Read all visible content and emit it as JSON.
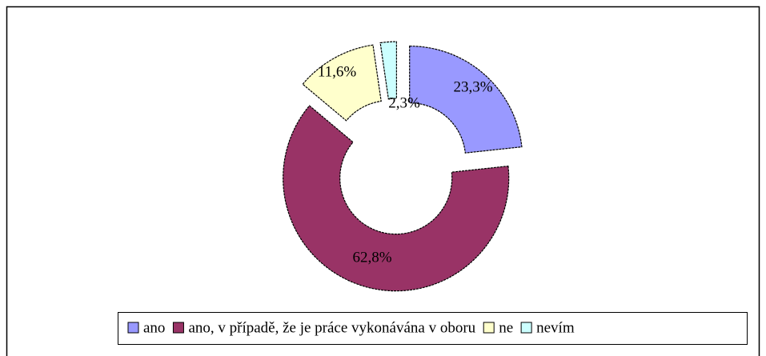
{
  "chart_data": {
    "type": "donut",
    "categories": [
      "ano",
      "ano, v případě, že je práce vykonávána v oboru",
      "ne",
      "nevím"
    ],
    "values": [
      23.3,
      62.8,
      11.6,
      2.3
    ],
    "value_labels": [
      "23,3%",
      "62,8%",
      "11,6%",
      "2,3%"
    ],
    "colors": [
      "#9999ff",
      "#993366",
      "#ffffcc",
      "#ccffff"
    ],
    "legend": "bottom"
  }
}
